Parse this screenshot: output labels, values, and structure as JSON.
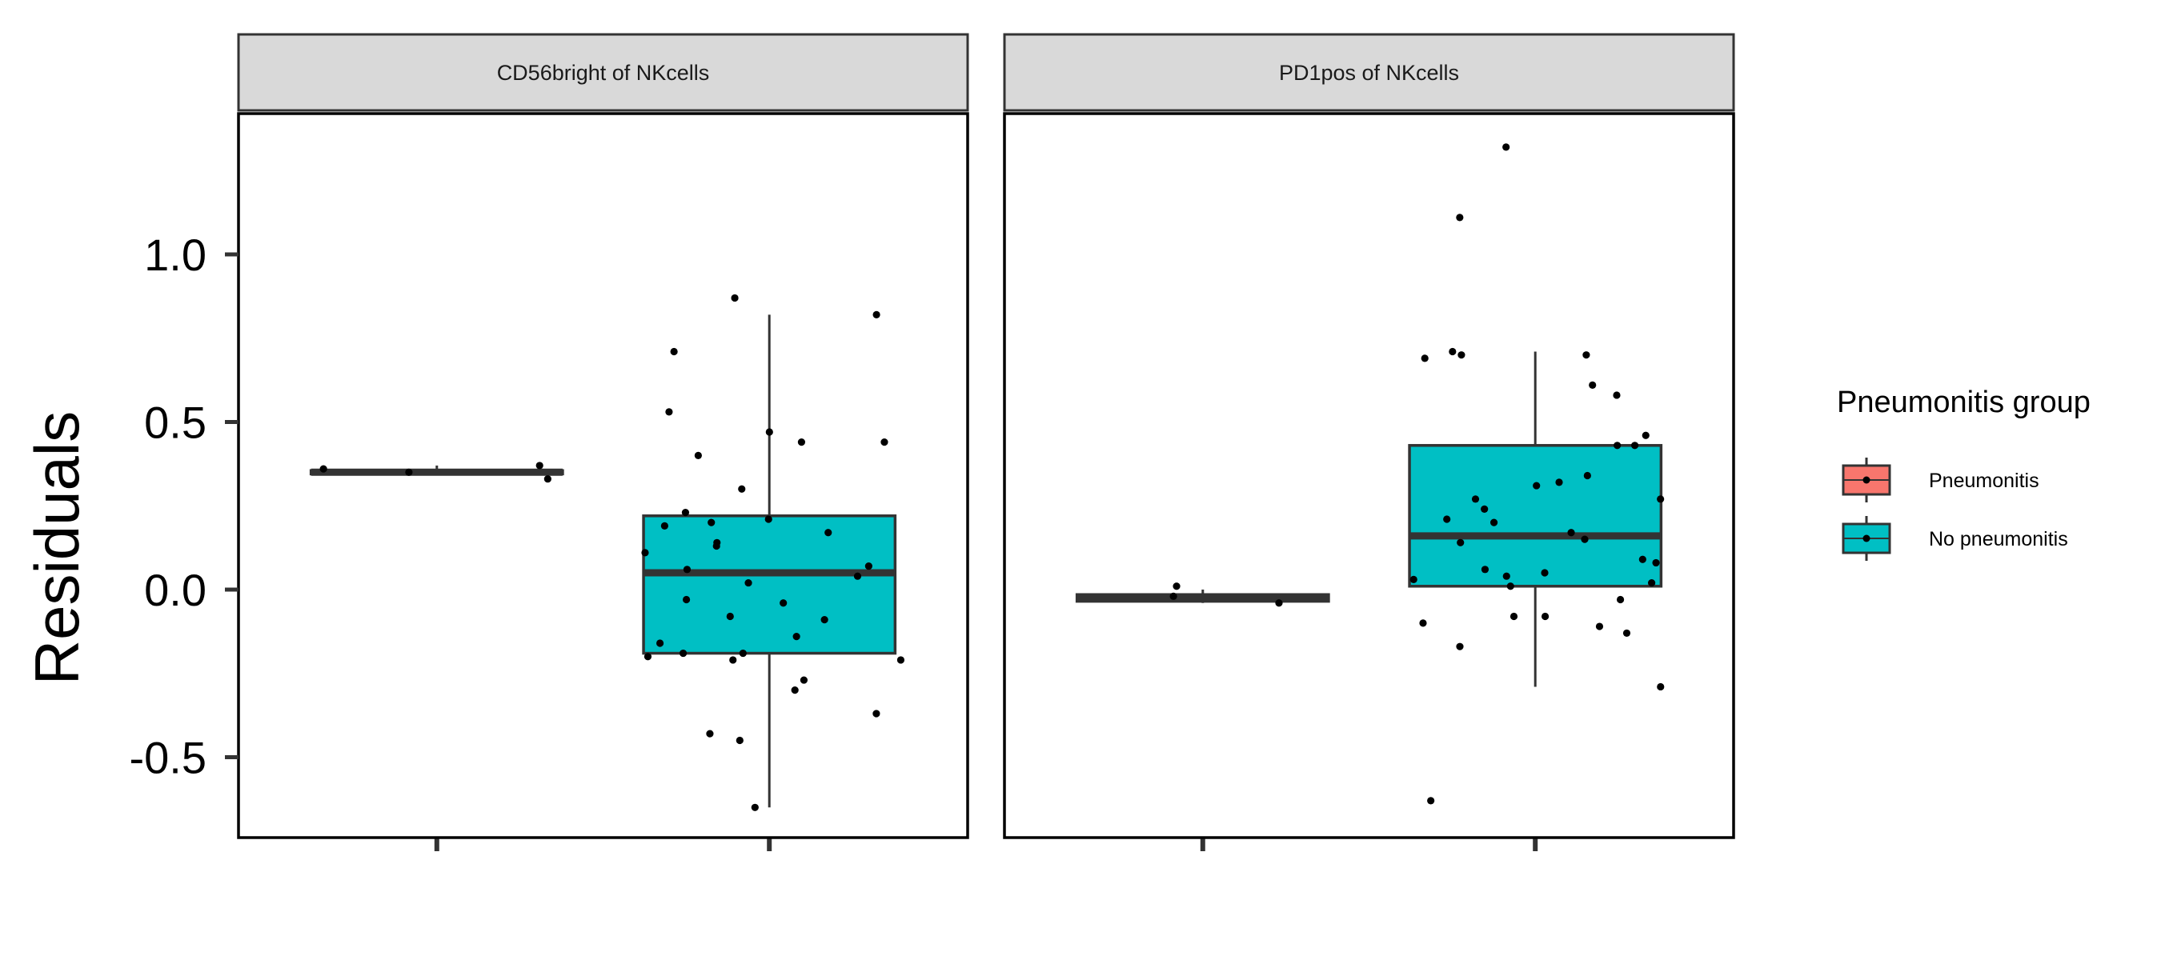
{
  "chart_data": {
    "type": "box",
    "ylabel": "Residuals",
    "xlabel": "",
    "ylim": [
      -0.74,
      1.42
    ],
    "y_ticks": [
      -0.5,
      0.0,
      0.5,
      1.0
    ],
    "y_tick_labels": [
      "-0.5",
      "0.0",
      "0.5",
      "1.0"
    ],
    "grid": false,
    "legend": {
      "title": "Pneumonitis group",
      "position": "right",
      "entries": [
        {
          "label": "Pneumonitis",
          "color": "#F8766D"
        },
        {
          "label": "No pneumonitis",
          "color": "#00BFC4"
        }
      ]
    },
    "panels": [
      {
        "title": "CD56bright of NKcells",
        "groups": [
          {
            "group": "Pneumonitis",
            "color": "#F8766D",
            "box": {
              "min": 0.345,
              "q1": 0.345,
              "median": 0.35,
              "q3": 0.355,
              "max": 0.37
            },
            "points": [
              0.37,
              0.33,
              0.36,
              0.35
            ]
          },
          {
            "group": "No pneumonitis",
            "color": "#00BFC4",
            "box": {
              "min": -0.65,
              "q1": -0.19,
              "median": 0.05,
              "q3": 0.22,
              "max": 0.82
            },
            "points": [
              0.82,
              0.71,
              0.87,
              0.47,
              0.44,
              0.4,
              0.53,
              0.44,
              0.3,
              0.23,
              0.21,
              0.2,
              0.19,
              0.17,
              0.14,
              0.13,
              0.11,
              0.07,
              0.06,
              0.04,
              0.02,
              -0.03,
              -0.04,
              -0.08,
              -0.09,
              -0.14,
              -0.16,
              -0.19,
              -0.19,
              -0.2,
              -0.21,
              -0.21,
              -0.27,
              -0.3,
              -0.37,
              -0.43,
              -0.45,
              -0.65
            ]
          }
        ]
      },
      {
        "title": "PD1pos of NKcells",
        "groups": [
          {
            "group": "Pneumonitis",
            "color": "#F8766D",
            "box": {
              "min": -0.04,
              "q1": -0.035,
              "median": -0.025,
              "q3": -0.015,
              "max": 0.0
            },
            "points": [
              -0.02,
              -0.04,
              0.01
            ]
          },
          {
            "group": "No pneumonitis",
            "color": "#00BFC4",
            "box": {
              "min": -0.29,
              "q1": 0.01,
              "median": 0.16,
              "q3": 0.43,
              "max": 0.71
            },
            "points": [
              1.32,
              1.11,
              0.71,
              0.7,
              0.69,
              0.7,
              0.61,
              0.58,
              0.46,
              0.43,
              0.43,
              0.34,
              0.32,
              0.31,
              0.27,
              0.27,
              0.24,
              0.21,
              0.2,
              0.17,
              0.15,
              0.14,
              0.09,
              0.08,
              0.06,
              0.05,
              0.04,
              0.03,
              0.02,
              0.01,
              -0.03,
              -0.08,
              -0.08,
              -0.1,
              -0.11,
              -0.13,
              -0.17,
              -0.29,
              -0.63
            ]
          }
        ]
      }
    ]
  }
}
